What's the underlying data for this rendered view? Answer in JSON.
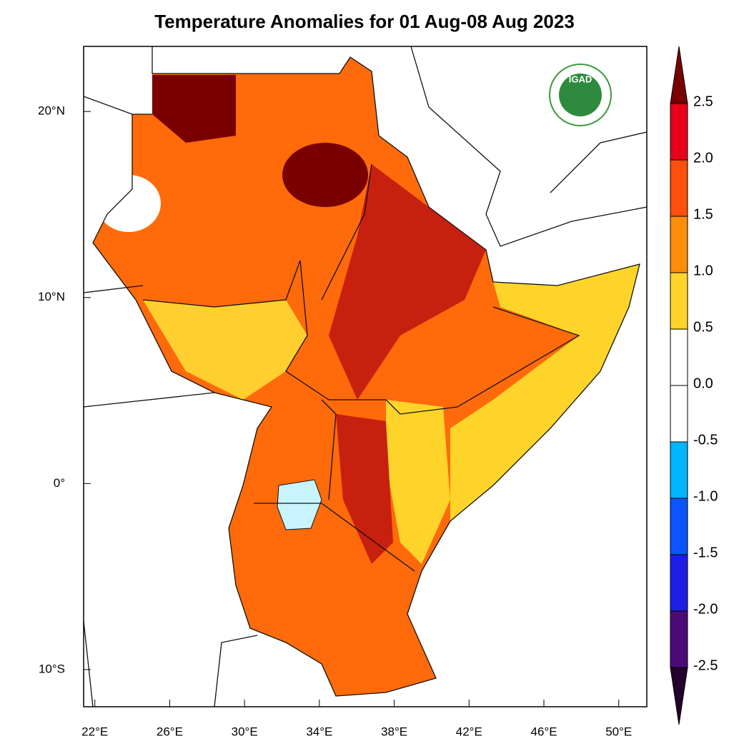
{
  "map": {
    "title": "Temperature Anomalies for 01 Aug-08 Aug 2023",
    "logo_text": "IGAD",
    "xlim": [
      21.4,
      51.5
    ],
    "ylim": [
      -12,
      23.5
    ],
    "xticks": [
      {
        "value": 22,
        "label": "22°E"
      },
      {
        "value": 26,
        "label": "26°E"
      },
      {
        "value": 30,
        "label": "30°E"
      },
      {
        "value": 34,
        "label": "34°E"
      },
      {
        "value": 38,
        "label": "38°E"
      },
      {
        "value": 42,
        "label": "42°E"
      },
      {
        "value": 46,
        "label": "46°E"
      },
      {
        "value": 50,
        "label": "50°E"
      }
    ],
    "yticks": [
      {
        "value": 20,
        "label": "20°N"
      },
      {
        "value": 10,
        "label": "10°N"
      },
      {
        "value": 0,
        "label": "0°"
      },
      {
        "value": -10,
        "label": "10°S"
      }
    ],
    "colorbar": {
      "levels": [
        {
          "value": 2.5,
          "label": "2.5"
        },
        {
          "value": 2,
          "label": "2.0"
        },
        {
          "value": 1.5,
          "label": "1.5"
        },
        {
          "value": 1,
          "label": "1.0"
        },
        {
          "value": 0.5,
          "label": "0.5"
        },
        {
          "value": 0,
          "label": "0.0"
        },
        {
          "value": -0.5,
          "label": "-0.5"
        },
        {
          "value": -1,
          "label": "-1.0"
        },
        {
          "value": -1.5,
          "label": "-1.5"
        },
        {
          "value": -2,
          "label": "-2.0"
        },
        {
          "value": -2.5,
          "label": "-2.5"
        }
      ],
      "colors": [
        "#7a0000",
        "#e8001a",
        "#ff4f0a",
        "#ff8c0a",
        "#ffd42a",
        "#ffffff",
        "#ffffff",
        "#00b4ff",
        "#0a55ff",
        "#1e1ee6",
        "#4b0a78",
        "#24002e"
      ]
    }
  }
}
